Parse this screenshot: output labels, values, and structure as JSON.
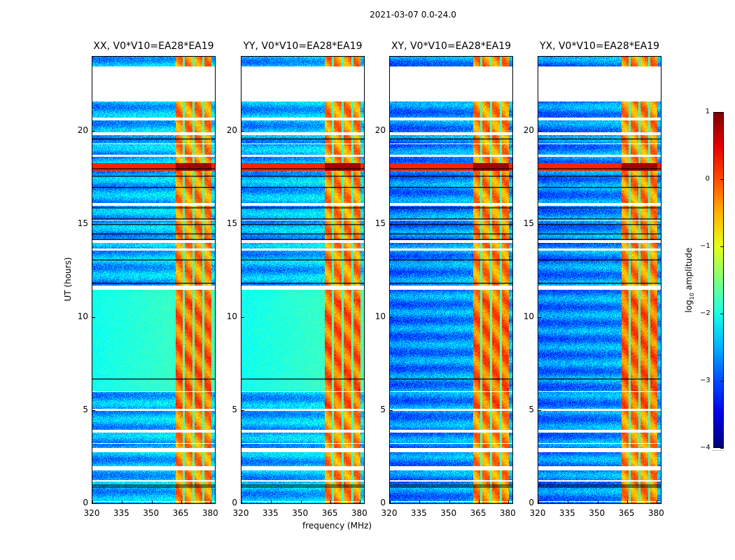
{
  "figure": {
    "suptitle": "2021-03-07 0.0-24.0",
    "xlabel": "frequency (MHz)",
    "ylabel": "UT (hours)",
    "colorbar": {
      "label": "log",
      "label_sub": "10",
      "label_rest": " amplitude",
      "ticks": [
        "1",
        "0",
        "−1",
        "−2",
        "−3",
        "−4"
      ],
      "colormap": "jet"
    }
  },
  "chart_data": {
    "type": "heatmap",
    "title": "2021-03-07 0.0-24.0",
    "xlabel": "frequency (MHz)",
    "ylabel": "UT (hours)",
    "xlim": [
      320,
      382
    ],
    "ylim": [
      0,
      24
    ],
    "x_ticks": [
      320,
      335,
      350,
      365,
      380
    ],
    "x_tick_labels": [
      "320",
      "335",
      "350",
      "365",
      "380"
    ],
    "y_ticks": [
      0,
      5,
      10,
      15,
      20
    ],
    "y_tick_labels": [
      "0",
      "5",
      "10",
      "15",
      "20"
    ],
    "color_scale": {
      "label": "log10 amplitude",
      "min": -4,
      "max": 1,
      "ticks": [
        1,
        0,
        -1,
        -2,
        -3,
        -4
      ],
      "colormap": "jet"
    },
    "panels": [
      {
        "title": "XX, V0*V10=EA28*EA19",
        "pol": "XX",
        "baseline": "V0*V10=EA28*EA19",
        "background_level": -2.6,
        "cyan_band_hours": [
          6.0,
          11.5
        ]
      },
      {
        "title": "YY, V0*V10=EA28*EA19",
        "pol": "YY",
        "baseline": "V0*V10=EA28*EA19",
        "background_level": -2.6,
        "cyan_band_hours": [
          6.0,
          11.5
        ]
      },
      {
        "title": "XY, V0*V10=EA28*EA19",
        "pol": "XY",
        "baseline": "V0*V10=EA28*EA19",
        "background_level": -2.8,
        "cyan_band_hours": []
      },
      {
        "title": "YX, V0*V10=EA28*EA19",
        "pol": "YX",
        "baseline": "V0*V10=EA28*EA19",
        "background_level": -2.8,
        "cyan_band_hours": []
      }
    ],
    "rfi_band_mhz": [
      362,
      380
    ],
    "rfi_channel_gaps_mhz": [
      366,
      371,
      376
    ],
    "rfi_level": -0.3,
    "flare_hours": [
      17.9,
      18.3
    ],
    "flare_level": 0.8,
    "flagged_hours": [
      [
        21.6,
        23.5
      ],
      [
        20.6,
        20.75
      ],
      [
        19.8,
        19.95
      ],
      [
        19.3,
        19.35
      ],
      [
        18.65,
        18.75
      ],
      [
        16.0,
        16.15
      ],
      [
        15.2,
        15.25
      ],
      [
        14.0,
        14.15
      ],
      [
        13.6,
        13.7
      ],
      [
        11.5,
        11.7
      ],
      [
        6.0,
        6.05
      ],
      [
        5.0,
        5.1
      ],
      [
        3.8,
        3.95
      ],
      [
        3.2,
        3.25
      ],
      [
        2.75,
        3.0
      ],
      [
        1.8,
        2.0
      ],
      [
        1.2,
        1.25
      ],
      [
        0.1,
        0.15
      ]
    ]
  }
}
